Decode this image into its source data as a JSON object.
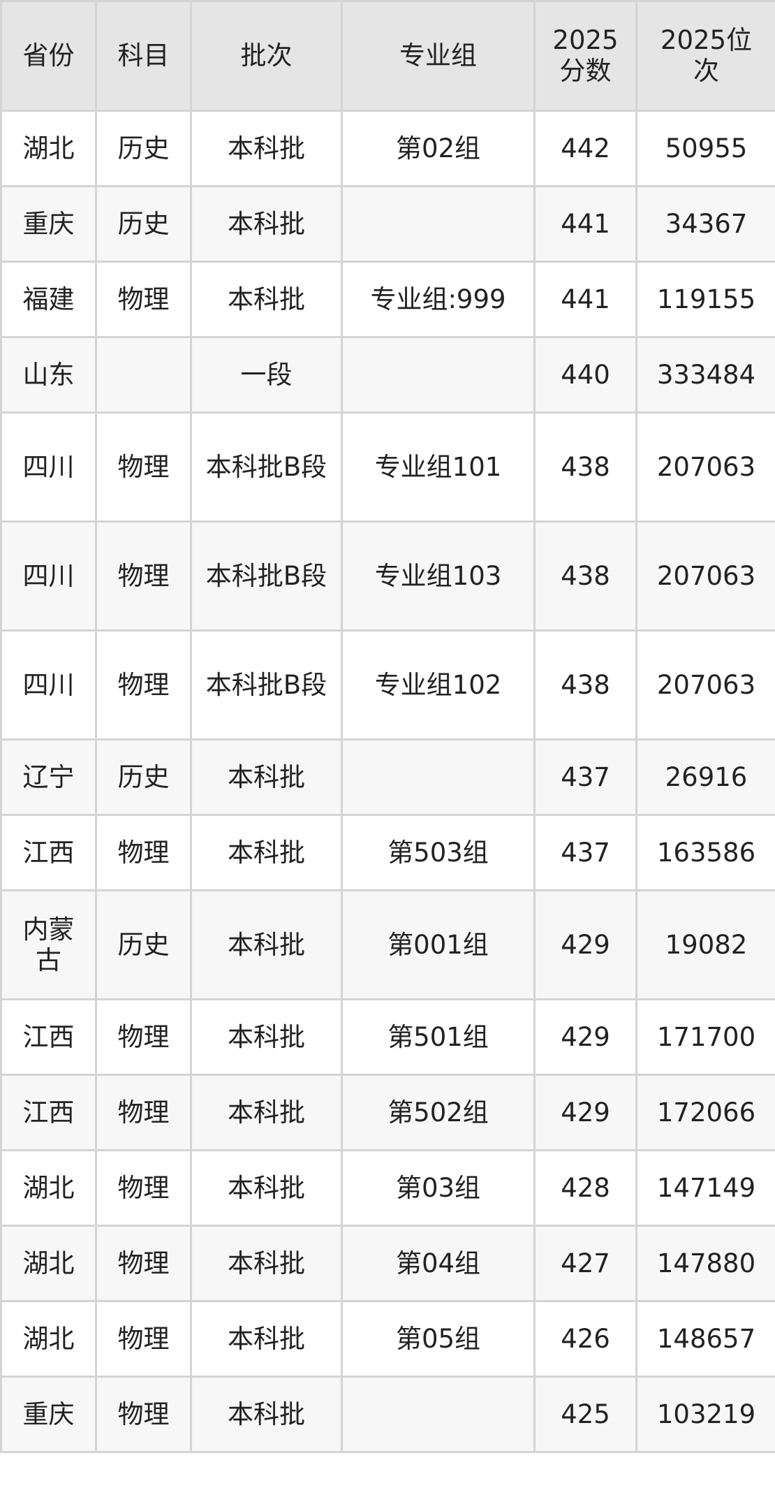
{
  "table": {
    "headers": [
      "省份",
      "科目",
      "批次",
      "专业组",
      "2025分数",
      "2025位次"
    ],
    "rows": [
      [
        "湖北",
        "历史",
        "本科批",
        "第02组",
        "442",
        "50955"
      ],
      [
        "重庆",
        "历史",
        "本科批",
        "",
        "441",
        "34367"
      ],
      [
        "福建",
        "物理",
        "本科批",
        "专业组:999",
        "441",
        "119155"
      ],
      [
        "山东",
        "",
        "一段",
        "",
        "440",
        "333484"
      ],
      [
        "四川",
        "物理",
        "本科批B段",
        "专业组101",
        "438",
        "207063"
      ],
      [
        "四川",
        "物理",
        "本科批B段",
        "专业组103",
        "438",
        "207063"
      ],
      [
        "四川",
        "物理",
        "本科批B段",
        "专业组102",
        "438",
        "207063"
      ],
      [
        "辽宁",
        "历史",
        "本科批",
        "",
        "437",
        "26916"
      ],
      [
        "江西",
        "物理",
        "本科批",
        "第503组",
        "437",
        "163586"
      ],
      [
        "内蒙古",
        "历史",
        "本科批",
        "第001组",
        "429",
        "19082"
      ],
      [
        "江西",
        "物理",
        "本科批",
        "第501组",
        "429",
        "171700"
      ],
      [
        "江西",
        "物理",
        "本科批",
        "第502组",
        "429",
        "172066"
      ],
      [
        "湖北",
        "物理",
        "本科批",
        "第03组",
        "428",
        "147149"
      ],
      [
        "湖北",
        "物理",
        "本科批",
        "第04组",
        "427",
        "147880"
      ],
      [
        "湖北",
        "物理",
        "本科批",
        "第05组",
        "426",
        "148657"
      ],
      [
        "重庆",
        "物理",
        "本科批",
        "",
        "425",
        "103219"
      ]
    ]
  },
  "colors": {
    "header_bg": "#e5e5e5",
    "row_alt_bg": "#f7f7f7",
    "border": "#d4d4d4",
    "text": "#222222"
  }
}
